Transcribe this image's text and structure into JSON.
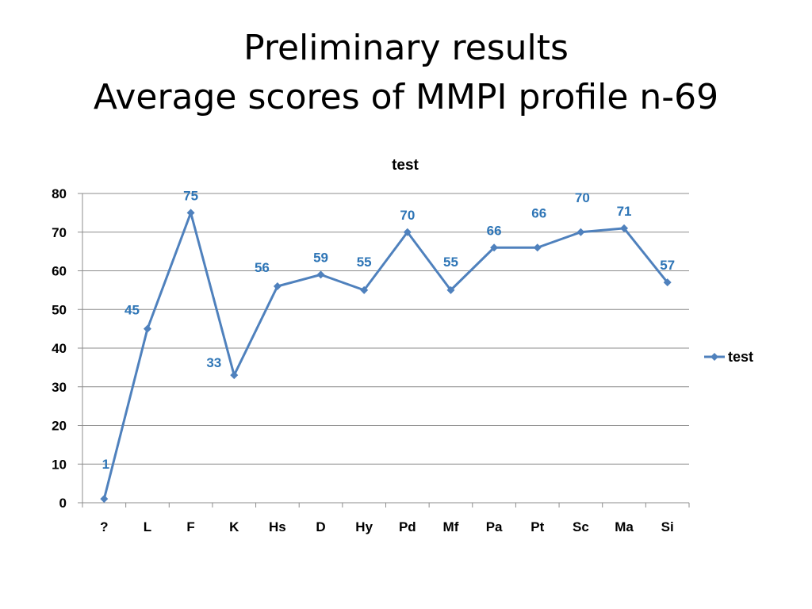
{
  "slide": {
    "title_line1": "Preliminary results",
    "title_line2": "Average scores of MMPI profile n-69"
  },
  "chart_data": {
    "type": "line",
    "title": "test",
    "xlabel": "",
    "ylabel": "",
    "categories": [
      "?",
      "L",
      "F",
      "K",
      "Hs",
      "D",
      "Hy",
      "Pd",
      "Mf",
      "Pa",
      "Pt",
      "Sc",
      "Ma",
      "Si"
    ],
    "series": [
      {
        "name": "test",
        "values": [
          1,
          45,
          75,
          33,
          56,
          59,
          55,
          70,
          55,
          66,
          66,
          70,
          71,
          57
        ],
        "color": "#4f81bd",
        "label_color": "#2e75b6",
        "marker": "diamond"
      }
    ],
    "ylim": [
      0,
      80
    ],
    "yticks": [
      0,
      10,
      20,
      30,
      40,
      50,
      60,
      70,
      80
    ],
    "grid": true,
    "data_labels": true,
    "legend_position": "right"
  }
}
